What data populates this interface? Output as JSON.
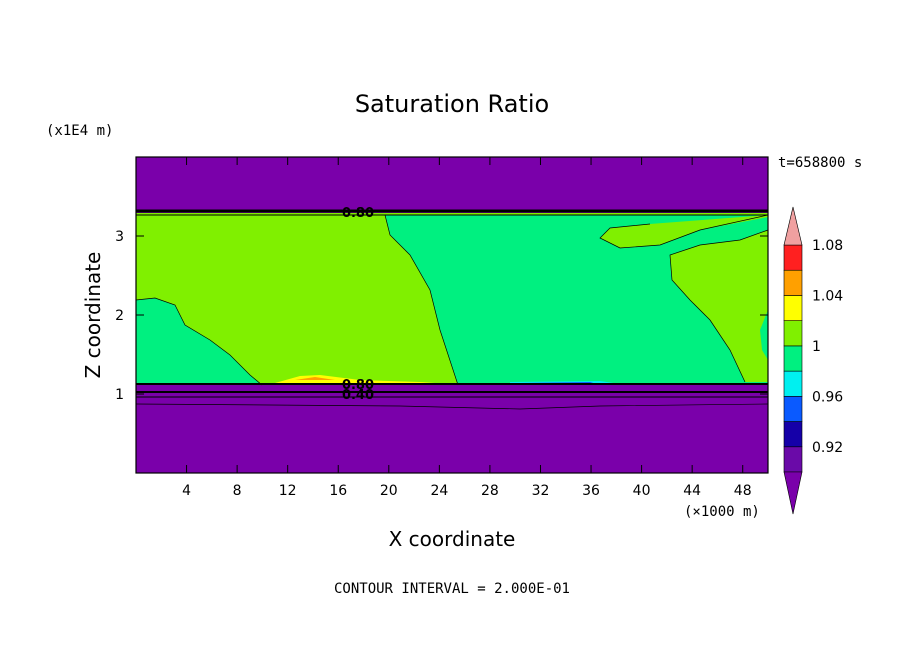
{
  "chart_data": {
    "type": "heatmap",
    "title": "Saturation Ratio",
    "xlabel": "X coordinate",
    "ylabel": "Z coordinate",
    "x_unit": "(×1000 m)",
    "y_unit": "(x1E4 m)",
    "time_label": "t=658800 s",
    "contour_interval_label": "CONTOUR INTERVAL = 2.000E-01",
    "xlim": [
      0,
      50
    ],
    "ylim": [
      0,
      4
    ],
    "x_ticks": [
      4,
      8,
      12,
      16,
      20,
      24,
      28,
      32,
      36,
      40,
      44,
      48
    ],
    "y_ticks": [
      1,
      2,
      3
    ],
    "contour_labels": [
      {
        "text": "0.80",
        "x": 17.5,
        "y": 3.3
      },
      {
        "text": "0.80",
        "x": 17.5,
        "y": 1.1
      },
      {
        "text": "0.40",
        "x": 17.5,
        "y": 1.0
      }
    ],
    "colorbar": {
      "levels": [
        "0.92",
        "0.96",
        "1",
        "1.04",
        "1.08"
      ],
      "colors": [
        "#6a0aa8",
        "#1500a8",
        "#0a5aff",
        "#00f0f0",
        "#00f080",
        "#80f000",
        "#ffff00",
        "#ffa000",
        "#ff2020",
        "#f0a0a0"
      ],
      "under_color": "#7a00aa",
      "over_color": "#f0a0a0"
    },
    "colors": {
      "dry_purple": "#7a00aa",
      "green_moist": "#80f000",
      "green_sat": "#00f080",
      "yellow": "#ffff00",
      "cyan": "#00f0f0",
      "blue": "#0a5aff"
    }
  }
}
